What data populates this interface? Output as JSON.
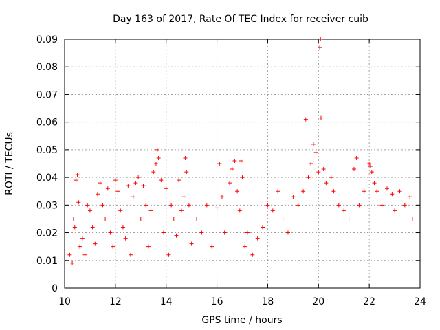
{
  "chart_data": {
    "type": "scatter",
    "title": "Day 163 of 2017, Rate Of TEC Index for receiver cuib",
    "xlabel": "GPS time / hours",
    "ylabel": "ROTI / TECUs",
    "xlim": [
      10,
      24
    ],
    "ylim": [
      0,
      0.09
    ],
    "xticks": [
      "10",
      "12",
      "14",
      "16",
      "18",
      "20",
      "22",
      "24"
    ],
    "yticks": [
      "0",
      "0.01",
      "0.02",
      "0.03",
      "0.04",
      "0.05",
      "0.06",
      "0.07",
      "0.08",
      "0.09"
    ],
    "grid": true,
    "marker": "+",
    "color": "#ff0000",
    "points": [
      [
        10.2,
        0.012
      ],
      [
        10.3,
        0.009
      ],
      [
        10.35,
        0.025
      ],
      [
        10.4,
        0.022
      ],
      [
        10.45,
        0.039
      ],
      [
        10.5,
        0.041
      ],
      [
        10.55,
        0.031
      ],
      [
        10.6,
        0.015
      ],
      [
        10.7,
        0.018
      ],
      [
        10.8,
        0.012
      ],
      [
        10.9,
        0.03
      ],
      [
        11.0,
        0.028
      ],
      [
        11.1,
        0.022
      ],
      [
        11.2,
        0.016
      ],
      [
        11.3,
        0.034
      ],
      [
        11.4,
        0.038
      ],
      [
        11.5,
        0.03
      ],
      [
        11.6,
        0.025
      ],
      [
        11.7,
        0.036
      ],
      [
        11.8,
        0.02
      ],
      [
        11.9,
        0.015
      ],
      [
        12.0,
        0.039
      ],
      [
        12.1,
        0.035
      ],
      [
        12.2,
        0.028
      ],
      [
        12.3,
        0.022
      ],
      [
        12.4,
        0.018
      ],
      [
        12.5,
        0.037
      ],
      [
        12.6,
        0.012
      ],
      [
        12.7,
        0.033
      ],
      [
        12.8,
        0.038
      ],
      [
        12.9,
        0.04
      ],
      [
        13.0,
        0.025
      ],
      [
        13.1,
        0.037
      ],
      [
        13.2,
        0.03
      ],
      [
        13.3,
        0.015
      ],
      [
        13.4,
        0.028
      ],
      [
        13.5,
        0.042
      ],
      [
        13.6,
        0.045
      ],
      [
        13.65,
        0.05
      ],
      [
        13.7,
        0.047
      ],
      [
        13.8,
        0.039
      ],
      [
        13.9,
        0.02
      ],
      [
        14.0,
        0.036
      ],
      [
        14.1,
        0.012
      ],
      [
        14.2,
        0.03
      ],
      [
        14.3,
        0.025
      ],
      [
        14.4,
        0.019
      ],
      [
        14.5,
        0.039
      ],
      [
        14.6,
        0.028
      ],
      [
        14.7,
        0.033
      ],
      [
        14.75,
        0.047
      ],
      [
        14.8,
        0.042
      ],
      [
        14.9,
        0.03
      ],
      [
        15.0,
        0.016
      ],
      [
        15.2,
        0.025
      ],
      [
        15.4,
        0.02
      ],
      [
        15.6,
        0.03
      ],
      [
        15.8,
        0.015
      ],
      [
        16.0,
        0.029
      ],
      [
        16.1,
        0.045
      ],
      [
        16.2,
        0.033
      ],
      [
        16.3,
        0.02
      ],
      [
        16.5,
        0.038
      ],
      [
        16.6,
        0.043
      ],
      [
        16.7,
        0.046
      ],
      [
        16.8,
        0.035
      ],
      [
        16.9,
        0.028
      ],
      [
        16.95,
        0.046
      ],
      [
        17.0,
        0.04
      ],
      [
        17.1,
        0.015
      ],
      [
        17.2,
        0.02
      ],
      [
        17.4,
        0.012
      ],
      [
        17.6,
        0.018
      ],
      [
        17.8,
        0.022
      ],
      [
        18.0,
        0.03
      ],
      [
        18.2,
        0.028
      ],
      [
        18.4,
        0.035
      ],
      [
        18.6,
        0.025
      ],
      [
        18.8,
        0.02
      ],
      [
        19.0,
        0.033
      ],
      [
        19.2,
        0.03
      ],
      [
        19.4,
        0.035
      ],
      [
        19.5,
        0.061
      ],
      [
        19.6,
        0.04
      ],
      [
        19.7,
        0.045
      ],
      [
        19.8,
        0.052
      ],
      [
        19.9,
        0.049
      ],
      [
        20.0,
        0.042
      ],
      [
        20.05,
        0.087
      ],
      [
        20.08,
        0.09
      ],
      [
        20.1,
        0.0615
      ],
      [
        20.2,
        0.043
      ],
      [
        20.3,
        0.038
      ],
      [
        20.5,
        0.04
      ],
      [
        20.6,
        0.035
      ],
      [
        20.8,
        0.03
      ],
      [
        21.0,
        0.028
      ],
      [
        21.2,
        0.025
      ],
      [
        21.4,
        0.043
      ],
      [
        21.5,
        0.047
      ],
      [
        21.6,
        0.03
      ],
      [
        21.8,
        0.035
      ],
      [
        22.0,
        0.045
      ],
      [
        22.05,
        0.044
      ],
      [
        22.1,
        0.042
      ],
      [
        22.2,
        0.038
      ],
      [
        22.3,
        0.035
      ],
      [
        22.5,
        0.03
      ],
      [
        22.7,
        0.036
      ],
      [
        22.9,
        0.034
      ],
      [
        23.0,
        0.028
      ],
      [
        23.2,
        0.035
      ],
      [
        23.4,
        0.03
      ],
      [
        23.6,
        0.033
      ],
      [
        23.7,
        0.025
      ]
    ]
  }
}
